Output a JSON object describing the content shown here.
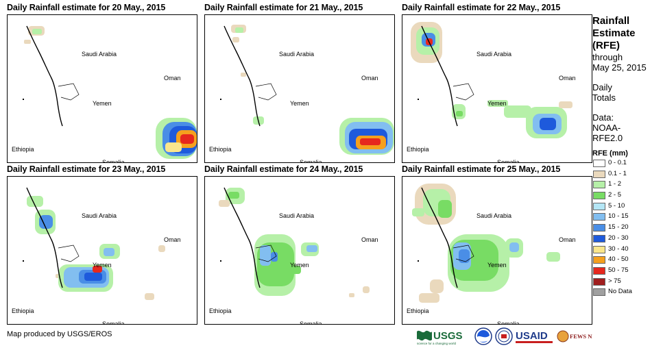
{
  "panels": [
    {
      "title": "Daily Rainfall estimate for 20 May., 2015"
    },
    {
      "title": "Daily Rainfall estimate for 21 May., 2015"
    },
    {
      "title": "Daily Rainfall estimate for 22 May., 2015"
    },
    {
      "title": "Daily Rainfall estimate for 23 May., 2015"
    },
    {
      "title": "Daily Rainfall estimate for 24 May., 2015"
    },
    {
      "title": "Daily Rainfall estimate for 25 May., 2015"
    }
  ],
  "map_labels": {
    "saudi": "Saudi Arabia",
    "oman": "Oman",
    "yemen": "Yemen",
    "ethiopia": "Ethiopia",
    "somalia": "Somalia"
  },
  "legend": {
    "title_line1": "Rainfall",
    "title_line2": "Estimate",
    "title_line3": "(RFE)",
    "through": "through",
    "date": "May 25, 2015",
    "daily": "Daily",
    "totals": "Totals",
    "data_label": "Data:",
    "data_source1": "NOAA-",
    "data_source2": "RFE2.0",
    "units": "RFE (mm)",
    "classes": [
      {
        "label": "0 - 0.1",
        "color": "#ffffff"
      },
      {
        "label": "0.1 - 1",
        "color": "#ead9bd"
      },
      {
        "label": "1 - 2",
        "color": "#b6f0a8"
      },
      {
        "label": "2 - 5",
        "color": "#78dc64"
      },
      {
        "label": "5 - 10",
        "color": "#b4e6f5"
      },
      {
        "label": "10 - 15",
        "color": "#82bef0"
      },
      {
        "label": "15 - 20",
        "color": "#4a8ee6"
      },
      {
        "label": "20 - 30",
        "color": "#1e5adc"
      },
      {
        "label": "30 - 40",
        "color": "#fae68c"
      },
      {
        "label": "40 - 50",
        "color": "#f5a01e"
      },
      {
        "label": "50 - 75",
        "color": "#e6281e"
      },
      {
        "label": "> 75",
        "color": "#a01e1e"
      },
      {
        "label": "No Data",
        "color": "#a0a0a0"
      }
    ]
  },
  "footer": {
    "credit": "Map produced by USGS/EROS",
    "logos": [
      "USGS",
      "NOAA",
      "USAID",
      "FEWS NET"
    ],
    "usgs_tagline": "science for a changing world"
  }
}
